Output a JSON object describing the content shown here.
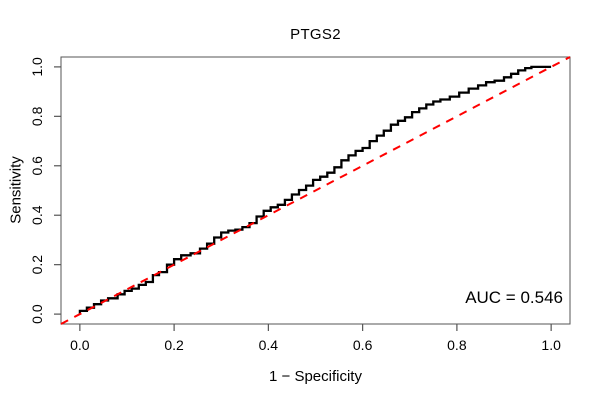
{
  "title": "PTGS2",
  "annotation": {
    "auc_label": "AUC = 0.546"
  },
  "colors": {
    "curve": "#000000",
    "reference_line": "#FF0000",
    "axis": "#555555",
    "text": "#000000",
    "background": "#FFFFFF"
  },
  "chart_data": {
    "type": "line",
    "subtype": "roc-step-curve",
    "title": "PTGS2",
    "xlabel": "1 − Specificity",
    "ylabel": "Sensitivity",
    "xlim": [
      0,
      1
    ],
    "ylim": [
      0,
      1
    ],
    "axis_expansion": 0.04,
    "x_ticks": [
      0.0,
      0.2,
      0.4,
      0.6,
      0.8,
      1.0
    ],
    "y_ticks": [
      0.0,
      0.2,
      0.4,
      0.6,
      0.8,
      1.0
    ],
    "grid": false,
    "legend": "none",
    "auc": 0.546,
    "annotation": "AUC = 0.546",
    "series": [
      {
        "name": "ROC curve",
        "style": "step",
        "color": "#000000",
        "dashed": false,
        "points": [
          [
            0.0,
            0.0
          ],
          [
            0.015,
            0.013
          ],
          [
            0.03,
            0.026
          ],
          [
            0.045,
            0.04
          ],
          [
            0.06,
            0.055
          ],
          [
            0.08,
            0.064
          ],
          [
            0.095,
            0.08
          ],
          [
            0.11,
            0.094
          ],
          [
            0.125,
            0.103
          ],
          [
            0.14,
            0.118
          ],
          [
            0.155,
            0.13
          ],
          [
            0.168,
            0.158
          ],
          [
            0.185,
            0.17
          ],
          [
            0.2,
            0.2
          ],
          [
            0.215,
            0.222
          ],
          [
            0.235,
            0.238
          ],
          [
            0.255,
            0.246
          ],
          [
            0.27,
            0.265
          ],
          [
            0.285,
            0.285
          ],
          [
            0.3,
            0.31
          ],
          [
            0.315,
            0.33
          ],
          [
            0.33,
            0.338
          ],
          [
            0.345,
            0.342
          ],
          [
            0.36,
            0.352
          ],
          [
            0.375,
            0.368
          ],
          [
            0.39,
            0.395
          ],
          [
            0.405,
            0.418
          ],
          [
            0.42,
            0.432
          ],
          [
            0.435,
            0.442
          ],
          [
            0.45,
            0.462
          ],
          [
            0.465,
            0.484
          ],
          [
            0.48,
            0.502
          ],
          [
            0.495,
            0.52
          ],
          [
            0.51,
            0.543
          ],
          [
            0.525,
            0.556
          ],
          [
            0.54,
            0.572
          ],
          [
            0.555,
            0.594
          ],
          [
            0.57,
            0.622
          ],
          [
            0.585,
            0.642
          ],
          [
            0.6,
            0.66
          ],
          [
            0.615,
            0.672
          ],
          [
            0.63,
            0.7
          ],
          [
            0.645,
            0.722
          ],
          [
            0.66,
            0.742
          ],
          [
            0.675,
            0.766
          ],
          [
            0.69,
            0.782
          ],
          [
            0.705,
            0.796
          ],
          [
            0.72,
            0.817
          ],
          [
            0.735,
            0.832
          ],
          [
            0.75,
            0.848
          ],
          [
            0.765,
            0.86
          ],
          [
            0.785,
            0.868
          ],
          [
            0.805,
            0.88
          ],
          [
            0.825,
            0.896
          ],
          [
            0.845,
            0.912
          ],
          [
            0.862,
            0.925
          ],
          [
            0.88,
            0.938
          ],
          [
            0.9,
            0.944
          ],
          [
            0.915,
            0.958
          ],
          [
            0.93,
            0.972
          ],
          [
            0.945,
            0.986
          ],
          [
            0.958,
            0.995
          ],
          [
            0.97,
            1.0
          ],
          [
            1.0,
            1.0
          ]
        ]
      },
      {
        "name": "reference diagonal",
        "style": "line",
        "color": "#FF0000",
        "dashed": true,
        "points": [
          [
            0,
            0
          ],
          [
            1,
            1
          ]
        ]
      }
    ]
  }
}
